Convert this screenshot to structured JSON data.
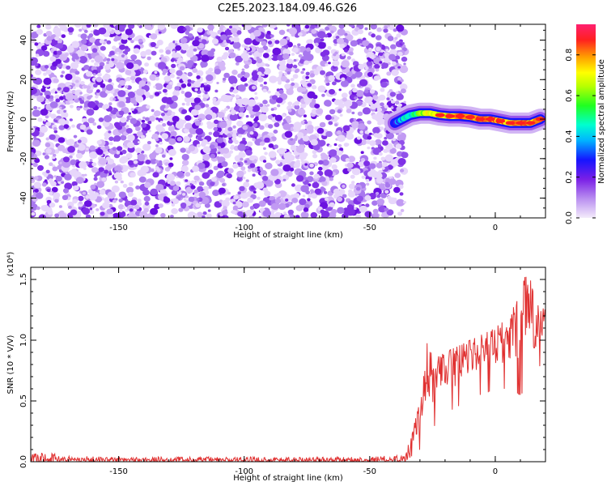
{
  "title": "C2E5.2023.184.09.46.G26",
  "chart_data": [
    {
      "type": "heatmap",
      "xlabel": "Height of straight line (km)",
      "ylabel": "Frequency (Hz)",
      "xlim": [
        -185,
        20
      ],
      "ylim": [
        -50,
        48
      ],
      "x_ticks": [
        -150,
        -100,
        -50,
        0
      ],
      "x_tick_labels": [
        "-150",
        "-100",
        "-50",
        "0"
      ],
      "y_ticks": [
        -40,
        -20,
        0,
        20,
        40
      ],
      "y_tick_labels": [
        "-40",
        "-20",
        "0",
        "20",
        "40"
      ],
      "colorbar": {
        "label": "Normalized spectral amplitude",
        "range": [
          0,
          0.95
        ],
        "ticks": [
          0.0,
          0.2,
          0.4,
          0.6,
          0.8
        ],
        "tick_labels": [
          "0.0",
          "0.2",
          "0.4",
          "0.6",
          "0.8"
        ]
      },
      "noise_region": {
        "x_from": -185,
        "x_to": -36,
        "amplitude_range": [
          0.05,
          0.3
        ]
      },
      "signal_track": [
        {
          "x": -40,
          "y": -2,
          "amp": 0.3
        },
        {
          "x": -37,
          "y": 0,
          "amp": 0.4
        },
        {
          "x": -34,
          "y": 2,
          "amp": 0.5
        },
        {
          "x": -30,
          "y": 3,
          "amp": 0.6
        },
        {
          "x": -26,
          "y": 3,
          "amp": 0.7
        },
        {
          "x": -22,
          "y": 2,
          "amp": 0.75
        },
        {
          "x": -18,
          "y": 1.5,
          "amp": 0.78
        },
        {
          "x": -14,
          "y": 1.5,
          "amp": 0.85
        },
        {
          "x": -10,
          "y": 1,
          "amp": 0.8
        },
        {
          "x": -6,
          "y": 0,
          "amp": 0.85
        },
        {
          "x": -2,
          "y": 0,
          "amp": 0.9
        },
        {
          "x": 2,
          "y": -1,
          "amp": 0.85
        },
        {
          "x": 6,
          "y": -2,
          "amp": 0.8
        },
        {
          "x": 10,
          "y": -2,
          "amp": 0.85
        },
        {
          "x": 14,
          "y": -2,
          "amp": 0.8
        },
        {
          "x": 18,
          "y": 0,
          "amp": 0.75
        }
      ]
    },
    {
      "type": "line",
      "xlabel": "Height of straight line (km)",
      "ylabel": "SNR (10 * V/V)",
      "scale_label": "(x10⁴)",
      "xlim": [
        -185,
        20
      ],
      "ylim": [
        0,
        1.6
      ],
      "x_ticks": [
        -150,
        -100,
        -50,
        0
      ],
      "x_tick_labels": [
        "-150",
        "-100",
        "-50",
        "0"
      ],
      "y_ticks": [
        0.0,
        0.5,
        1.0,
        1.5
      ],
      "y_tick_labels": [
        "0.0",
        "0.5",
        "1.0",
        "1.5"
      ],
      "series": [
        {
          "color": "#e03030",
          "envelope": [
            {
              "x": -185,
              "low": 0.0,
              "high": 0.06
            },
            {
              "x": -180,
              "low": 0.0,
              "high": 0.08
            },
            {
              "x": -170,
              "low": 0.0,
              "high": 0.05
            },
            {
              "x": -150,
              "low": 0.0,
              "high": 0.04
            },
            {
              "x": -100,
              "low": 0.0,
              "high": 0.04
            },
            {
              "x": -50,
              "low": 0.0,
              "high": 0.04
            },
            {
              "x": -36,
              "low": 0.0,
              "high": 0.06
            },
            {
              "x": -33,
              "low": 0.05,
              "high": 0.25
            },
            {
              "x": -30,
              "low": 0.1,
              "high": 0.5
            },
            {
              "x": -27,
              "low": 0.2,
              "high": 1.0
            },
            {
              "x": -24,
              "low": 0.3,
              "high": 0.85
            },
            {
              "x": -20,
              "low": 0.4,
              "high": 0.9
            },
            {
              "x": -15,
              "low": 0.45,
              "high": 0.95
            },
            {
              "x": -10,
              "low": 0.55,
              "high": 1.0
            },
            {
              "x": -5,
              "low": 0.55,
              "high": 1.05
            },
            {
              "x": 0,
              "low": 0.6,
              "high": 1.1
            },
            {
              "x": 5,
              "low": 0.6,
              "high": 1.2
            },
            {
              "x": 10,
              "low": 0.55,
              "high": 1.4
            },
            {
              "x": 13,
              "low": 0.6,
              "high": 1.6
            },
            {
              "x": 16,
              "low": 0.7,
              "high": 1.3
            },
            {
              "x": 20,
              "low": 0.9,
              "high": 1.25
            }
          ]
        }
      ]
    }
  ],
  "colors": {
    "noise_purple": "#8a2be2",
    "signal_line": "#e03030",
    "frame": "#000000"
  }
}
